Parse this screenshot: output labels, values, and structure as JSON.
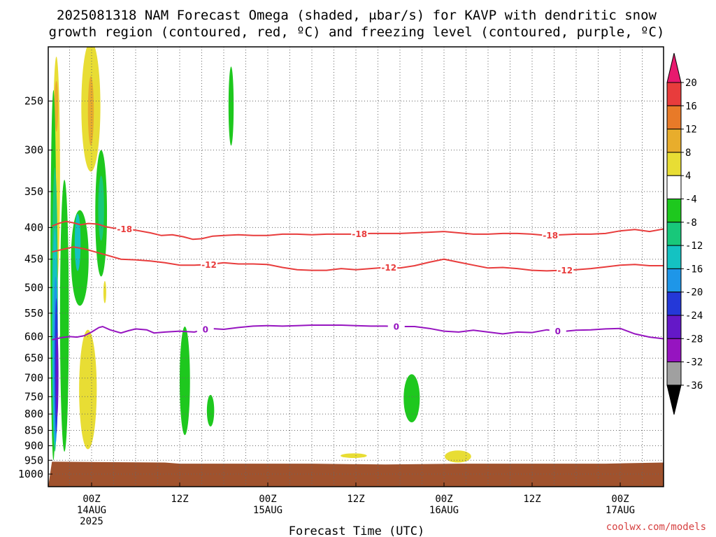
{
  "title_lines": [
    "2025081318 NAM Forecast Omega (shaded, μbar/s) for KAVP with dendritic snow",
    "growth region (contoured, red, ºC) and freezing level (contoured, purple, ºC)"
  ],
  "xlabel": "Forecast Time (UTC)",
  "credit": "coolwx.com/models",
  "chart_data": {
    "type": "time-height cross section",
    "title": "2025081318 NAM Forecast Omega (shaded, μbar/s) for KAVP with dendritic snow growth region (contoured, red, ºC) and freezing level (contoured, purple, ºC)",
    "xlabel": "Forecast Time (UTC)",
    "x_range_hours": [
      -5.4,
      78
    ],
    "y_axis": {
      "scale": "log-pressure",
      "range_mb": [
        200,
        1030
      ],
      "ticks": [
        250,
        300,
        350,
        400,
        450,
        500,
        550,
        600,
        650,
        700,
        750,
        800,
        850,
        900,
        950,
        1000
      ]
    },
    "x_ticks": [
      {
        "hour": 0,
        "label1": "00Z",
        "label2": "14AUG",
        "label3": "2025"
      },
      {
        "hour": 12,
        "label1": "12Z",
        "label2": "",
        "label3": ""
      },
      {
        "hour": 24,
        "label1": "00Z",
        "label2": "15AUG",
        "label3": ""
      },
      {
        "hour": 36,
        "label1": "12Z",
        "label2": "",
        "label3": ""
      },
      {
        "hour": 48,
        "label1": "00Z",
        "label2": "16AUG",
        "label3": ""
      },
      {
        "hour": 60,
        "label1": "12Z",
        "label2": "",
        "label3": ""
      },
      {
        "hour": 72,
        "label1": "00Z",
        "label2": "17AUG",
        "label3": ""
      }
    ],
    "grid": true,
    "vertical_grid_hours": [
      -3,
      0,
      3,
      6,
      9,
      12,
      15,
      18,
      21,
      24,
      27,
      30,
      33,
      36,
      39,
      42,
      45,
      48,
      51,
      54,
      57,
      60,
      63,
      66,
      69,
      72,
      75
    ],
    "colorbar": {
      "labels": [
        "20",
        "16",
        "12",
        "8",
        "4",
        "-4",
        "-8",
        "-12",
        "-16",
        "-20",
        "-24",
        "-28",
        "-32",
        "-36"
      ],
      "colors": [
        "#e8196e",
        "#e83c3c",
        "#e87a28",
        "#e8ad2c",
        "#e8dd34",
        "#ffffff",
        "#1ec81e",
        "#18c87a",
        "#14c2c2",
        "#1e96e8",
        "#2438d8",
        "#6418c8",
        "#9614c0",
        "#a0a0a0",
        "#000000"
      ]
    },
    "contours": [
      {
        "name": "-18",
        "color": "#e83c3c",
        "points": [
          [
            -5.4,
            398
          ],
          [
            -4.5,
            394
          ],
          [
            -3.5,
            391
          ],
          [
            -2.5,
            393
          ],
          [
            -1.5,
            396
          ],
          [
            -0.5,
            394
          ],
          [
            0.8,
            395
          ],
          [
            2,
            399
          ],
          [
            3,
            401
          ],
          [
            4.5,
            402
          ],
          [
            6,
            404
          ],
          [
            8,
            408
          ],
          [
            9.5,
            412
          ],
          [
            11,
            411
          ],
          [
            12.5,
            414
          ],
          [
            13.8,
            418
          ],
          [
            15,
            417
          ],
          [
            16.5,
            413
          ],
          [
            18,
            412
          ],
          [
            20,
            411
          ],
          [
            22,
            412
          ],
          [
            24,
            412
          ],
          [
            26,
            410
          ],
          [
            28,
            410
          ],
          [
            30,
            411
          ],
          [
            32,
            410
          ],
          [
            34,
            410
          ],
          [
            36,
            410
          ],
          [
            38,
            409
          ],
          [
            40,
            409
          ],
          [
            42,
            409
          ],
          [
            44,
            408
          ],
          [
            46,
            407
          ],
          [
            48,
            406
          ],
          [
            50,
            408
          ],
          [
            52,
            410
          ],
          [
            54,
            410
          ],
          [
            56,
            409
          ],
          [
            58,
            409
          ],
          [
            60,
            410
          ],
          [
            62,
            412
          ],
          [
            64,
            411
          ],
          [
            66,
            410
          ],
          [
            68,
            410
          ],
          [
            70,
            409
          ],
          [
            72,
            405
          ],
          [
            74,
            403
          ],
          [
            76,
            406
          ],
          [
            78,
            402
          ]
        ],
        "labels": [
          {
            "x": 4.5,
            "text": "-18"
          },
          {
            "x": 36.5,
            "text": "-18"
          },
          {
            "x": 62.5,
            "text": "-18"
          }
        ]
      },
      {
        "name": "-12",
        "color": "#e83c3c",
        "points": [
          [
            -5.4,
            438
          ],
          [
            -4,
            434
          ],
          [
            -2.5,
            430
          ],
          [
            -1,
            433
          ],
          [
            0.5,
            438
          ],
          [
            2,
            443
          ],
          [
            4,
            450
          ],
          [
            6,
            451
          ],
          [
            8,
            453
          ],
          [
            10,
            456
          ],
          [
            12,
            460
          ],
          [
            14,
            460
          ],
          [
            16,
            459
          ],
          [
            18,
            456
          ],
          [
            20,
            458
          ],
          [
            22,
            458
          ],
          [
            24,
            459
          ],
          [
            26,
            464
          ],
          [
            28,
            468
          ],
          [
            30,
            469
          ],
          [
            32,
            469
          ],
          [
            34,
            466
          ],
          [
            36,
            468
          ],
          [
            38,
            466
          ],
          [
            40,
            464
          ],
          [
            42,
            465
          ],
          [
            44,
            461
          ],
          [
            46,
            455
          ],
          [
            48,
            450
          ],
          [
            50,
            455
          ],
          [
            52,
            460
          ],
          [
            54,
            465
          ],
          [
            56,
            464
          ],
          [
            58,
            466
          ],
          [
            60,
            469
          ],
          [
            62,
            470
          ],
          [
            64,
            469
          ],
          [
            66,
            468
          ],
          [
            68,
            466
          ],
          [
            70,
            463
          ],
          [
            72,
            460
          ],
          [
            74,
            459
          ],
          [
            76,
            461
          ],
          [
            78,
            461
          ]
        ],
        "labels": [
          {
            "x": 16,
            "text": "-12"
          },
          {
            "x": 40.5,
            "text": "-12"
          },
          {
            "x": 64.5,
            "text": "-12"
          }
        ]
      },
      {
        "name": "0",
        "color": "#9614c0",
        "points": [
          [
            -5.4,
            607
          ],
          [
            -4,
            602
          ],
          [
            -3,
            600
          ],
          [
            -2,
            601
          ],
          [
            -1,
            598
          ],
          [
            0,
            590
          ],
          [
            1,
            580
          ],
          [
            1.5,
            578
          ],
          [
            2.5,
            585
          ],
          [
            4,
            592
          ],
          [
            5,
            587
          ],
          [
            6,
            583
          ],
          [
            7.5,
            585
          ],
          [
            8.5,
            592
          ],
          [
            10,
            590
          ],
          [
            12,
            588
          ],
          [
            14,
            590
          ],
          [
            16,
            582
          ],
          [
            18,
            584
          ],
          [
            20,
            580
          ],
          [
            22,
            577
          ],
          [
            24,
            576
          ],
          [
            26,
            577
          ],
          [
            28,
            576
          ],
          [
            30,
            575
          ],
          [
            32,
            575
          ],
          [
            34,
            575
          ],
          [
            36,
            576
          ],
          [
            38,
            577
          ],
          [
            40,
            577
          ],
          [
            42,
            578
          ],
          [
            44,
            578
          ],
          [
            46,
            582
          ],
          [
            48,
            588
          ],
          [
            50,
            590
          ],
          [
            52,
            586
          ],
          [
            54,
            590
          ],
          [
            56,
            594
          ],
          [
            58,
            590
          ],
          [
            60,
            591
          ],
          [
            62,
            585
          ],
          [
            64,
            589
          ],
          [
            66,
            586
          ],
          [
            68,
            585
          ],
          [
            70,
            583
          ],
          [
            72,
            582
          ],
          [
            74,
            594
          ],
          [
            76,
            601
          ],
          [
            78,
            605
          ]
        ],
        "labels": [
          {
            "x": 15.5,
            "text": "0"
          },
          {
            "x": 41.5,
            "text": "0"
          },
          {
            "x": 63.5,
            "text": "0"
          }
        ]
      }
    ],
    "shaded_regions": [
      {
        "color": "#e8dd34",
        "center": [
          -4.8,
          420
        ],
        "half_width_hours": 0.5,
        "p_range": [
          212,
          500
        ]
      },
      {
        "color": "#e8ad2c",
        "center": [
          -4.8,
          255
        ],
        "half_width_hours": 0.25,
        "p_range": [
          232,
          280
        ]
      },
      {
        "color": "#e8dd34",
        "center": [
          -0.1,
          260
        ],
        "half_width_hours": 1.3,
        "p_range": [
          200,
          325
        ]
      },
      {
        "color": "#e8ad2c",
        "center": [
          -0.1,
          260
        ],
        "half_width_hours": 0.4,
        "p_range": [
          228,
          295
        ]
      },
      {
        "color": "#e8dd34",
        "center": [
          1.8,
          510
        ],
        "half_width_hours": 0.15,
        "p_range": [
          488,
          530
        ]
      },
      {
        "color": "#e8dd34",
        "center": [
          -0.5,
          720
        ],
        "half_width_hours": 1.2,
        "p_range": [
          585,
          912
        ]
      },
      {
        "color": "#e8dd34",
        "center": [
          35.7,
          935
        ],
        "half_width_hours": 1.8,
        "p_range": [
          926,
          942
        ]
      },
      {
        "color": "#e8dd34",
        "center": [
          49.9,
          938
        ],
        "half_width_hours": 1.8,
        "p_range": [
          916,
          958
        ]
      },
      {
        "color": "#1ec81e",
        "center": [
          -5.2,
          480
        ],
        "half_width_hours": 0.4,
        "p_range": [
          240,
          950
        ]
      },
      {
        "color": "#1ec81e",
        "center": [
          -3.7,
          380
        ],
        "half_width_hours": 0.6,
        "p_range": [
          335,
          920
        ]
      },
      {
        "color": "#1ec81e",
        "center": [
          -1.6,
          440
        ],
        "half_width_hours": 1.2,
        "p_range": [
          375,
          535
        ]
      },
      {
        "color": "#1ec81e",
        "center": [
          1.3,
          390
        ],
        "half_width_hours": 0.8,
        "p_range": [
          300,
          480
        ]
      },
      {
        "color": "#1ec81e",
        "center": [
          19.0,
          255
        ],
        "half_width_hours": 0.35,
        "p_range": [
          220,
          295
        ]
      },
      {
        "color": "#1ec81e",
        "center": [
          12.7,
          705
        ],
        "half_width_hours": 0.7,
        "p_range": [
          578,
          865
        ]
      },
      {
        "color": "#1ec81e",
        "center": [
          16.2,
          790
        ],
        "half_width_hours": 0.5,
        "p_range": [
          745,
          838
        ]
      },
      {
        "color": "#1ec81e",
        "center": [
          43.6,
          758
        ],
        "half_width_hours": 1.1,
        "p_range": [
          690,
          825
        ]
      },
      {
        "color": "#18c87a",
        "center": [
          -5.0,
          500
        ],
        "half_width_hours": 0.4,
        "p_range": [
          320,
          920
        ]
      },
      {
        "color": "#18c87a",
        "center": [
          1.3,
          372
        ],
        "half_width_hours": 0.4,
        "p_range": [
          330,
          420
        ]
      },
      {
        "color": "#14c2c2",
        "center": [
          -5.0,
          560
        ],
        "half_width_hours": 0.35,
        "p_range": [
          400,
          905
        ]
      },
      {
        "color": "#14c2c2",
        "center": [
          -1.9,
          410
        ],
        "half_width_hours": 0.4,
        "p_range": [
          380,
          470
        ]
      },
      {
        "color": "#1e96e8",
        "center": [
          -4.9,
          620
        ],
        "half_width_hours": 0.3,
        "p_range": [
          480,
          890
        ]
      },
      {
        "color": "#2438d8",
        "center": [
          -4.8,
          660
        ],
        "half_width_hours": 0.22,
        "p_range": [
          520,
          860
        ]
      },
      {
        "color": "#6418c8",
        "center": [
          -4.7,
          705
        ],
        "half_width_hours": 0.15,
        "p_range": [
          590,
          810
        ]
      }
    ],
    "surface": {
      "color": "#a0522d",
      "terrain_mb": [
        [
          -5.4,
          955
        ],
        [
          10,
          958
        ],
        [
          12,
          962
        ],
        [
          20,
          962
        ],
        [
          30,
          962
        ],
        [
          40,
          965
        ],
        [
          50,
          962
        ],
        [
          60,
          962
        ],
        [
          70,
          962
        ],
        [
          78,
          958
        ]
      ]
    }
  }
}
